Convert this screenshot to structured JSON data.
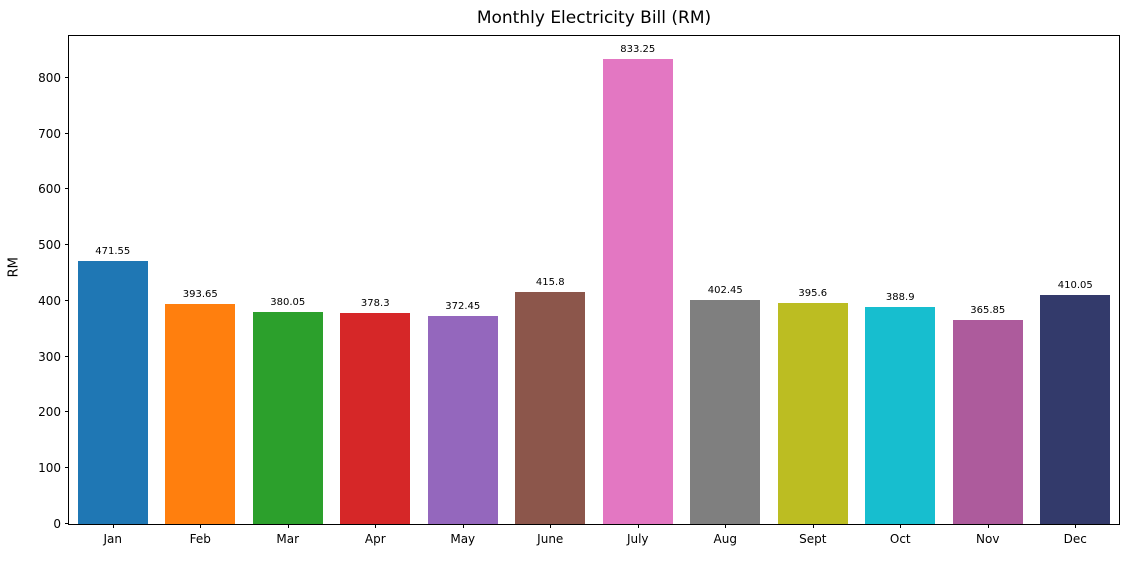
{
  "chart_data": {
    "type": "bar",
    "title": "Monthly Electricity Bill (RM)",
    "xlabel": "",
    "ylabel": "RM",
    "categories": [
      "Jan",
      "Feb",
      "Mar",
      "Apr",
      "May",
      "June",
      "July",
      "Aug",
      "Sept",
      "Oct",
      "Nov",
      "Dec"
    ],
    "values": [
      471.55,
      393.65,
      380.05,
      378.3,
      372.45,
      415.8,
      833.25,
      402.45,
      395.6,
      388.9,
      365.85,
      410.05
    ],
    "value_labels": [
      "471.55",
      "393.65",
      "380.05",
      "378.3",
      "372.45",
      "415.8",
      "833.25",
      "402.45",
      "395.6",
      "388.9",
      "365.85",
      "410.05"
    ],
    "bar_colors": [
      "#1f77b4",
      "#ff7f0e",
      "#2ca02c",
      "#d62728",
      "#9467bd",
      "#8c564b",
      "#e377c2",
      "#7f7f7f",
      "#bcbd22",
      "#17becf",
      "#ad5b9c",
      "#333a6b"
    ],
    "ylim": [
      0,
      875
    ],
    "yticks": [
      0,
      100,
      200,
      300,
      400,
      500,
      600,
      700,
      800
    ],
    "grid": false,
    "legend": "none",
    "bar_width_fraction": 0.8
  }
}
